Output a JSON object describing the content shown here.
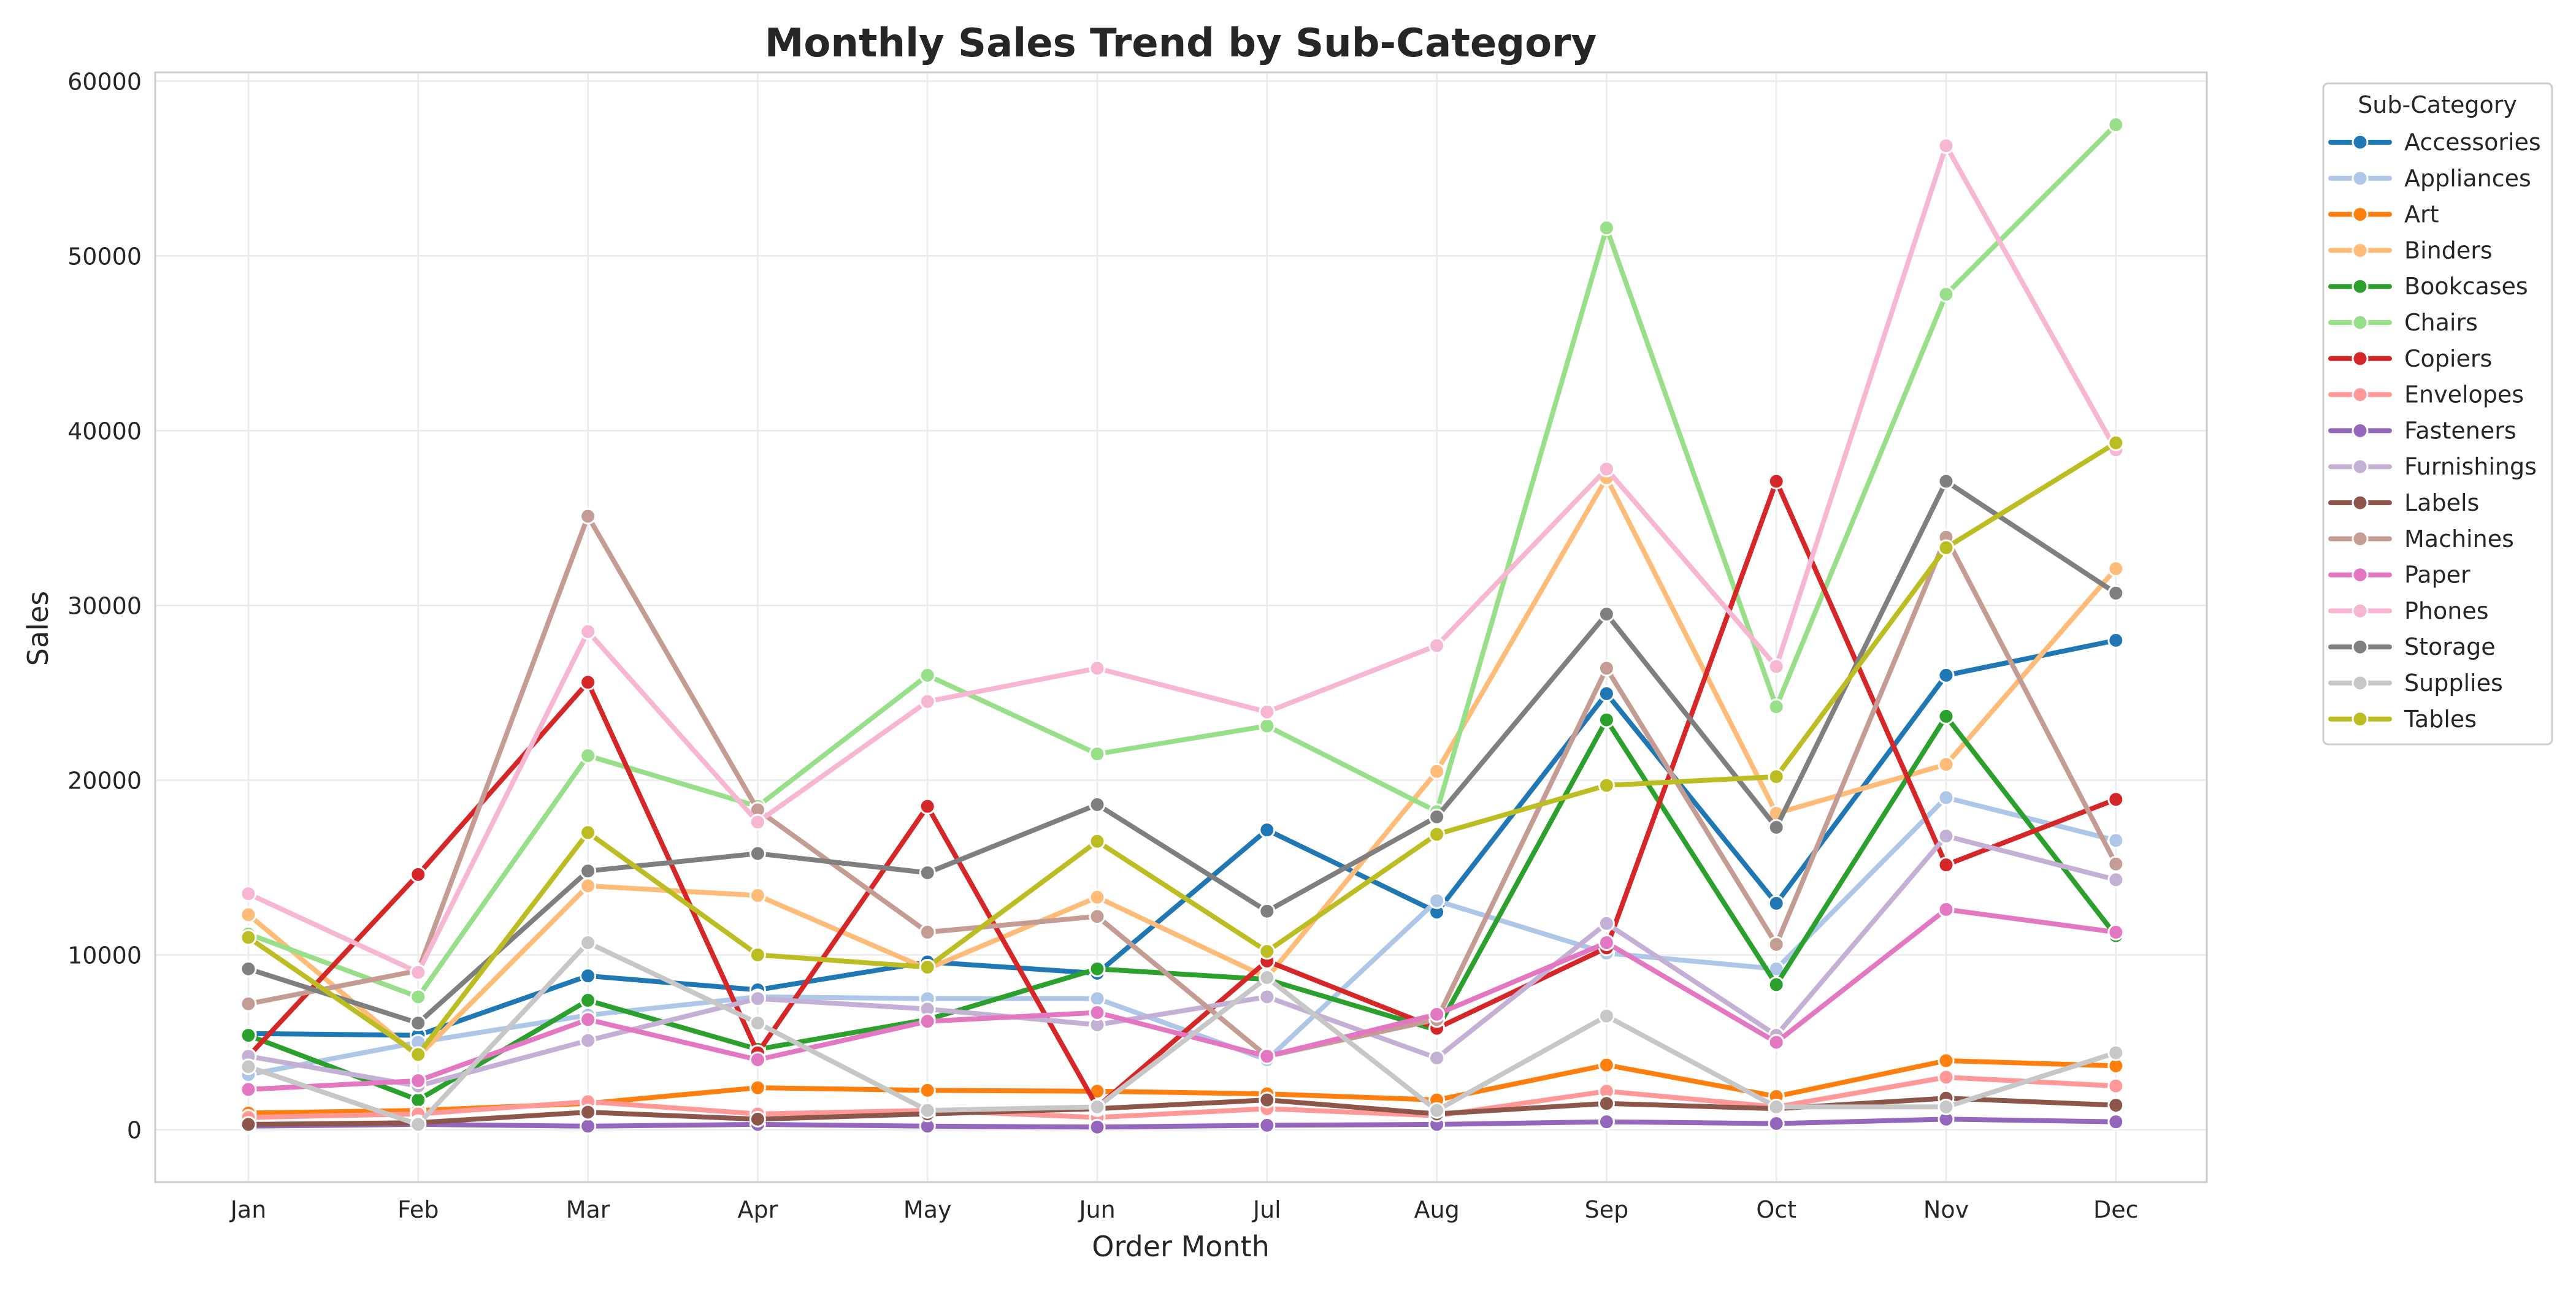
{
  "chart_data": {
    "type": "line",
    "title": "Monthly Sales Trend by Sub-Category",
    "xlabel": "Order Month",
    "ylabel": "Sales",
    "categories": [
      "Jan",
      "Feb",
      "Mar",
      "Apr",
      "May",
      "Jun",
      "Jul",
      "Aug",
      "Sep",
      "Oct",
      "Nov",
      "Dec"
    ],
    "ylim": [
      -3000,
      60500
    ],
    "yticks": [
      0,
      10000,
      20000,
      30000,
      40000,
      50000,
      60000
    ],
    "grid": true,
    "legend": {
      "title": "Sub-Category",
      "placement": "outside-right-top"
    },
    "series": [
      {
        "name": "Accessories",
        "color": "#1f77b4",
        "values": [
          5500,
          5400,
          8800,
          8000,
          9600,
          8950,
          17150,
          12450,
          24950,
          12950,
          26000,
          28000
        ]
      },
      {
        "name": "Appliances",
        "color": "#aec7e8",
        "values": [
          3150,
          5000,
          6550,
          7600,
          7500,
          7500,
          4000,
          13100,
          10100,
          9200,
          19000,
          16550
        ]
      },
      {
        "name": "Art",
        "color": "#ff7f0e",
        "values": [
          950,
          1100,
          1500,
          2400,
          2250,
          2200,
          2050,
          1700,
          3700,
          1900,
          3950,
          3650
        ]
      },
      {
        "name": "Binders",
        "color": "#ffbb78",
        "values": [
          12300,
          4200,
          13950,
          13400,
          9200,
          13300,
          8700,
          20500,
          37300,
          18100,
          20900,
          32100
        ]
      },
      {
        "name": "Bookcases",
        "color": "#2ca02c",
        "values": [
          5400,
          1700,
          7400,
          4600,
          6300,
          9200,
          8600,
          5700,
          23450,
          8300,
          23650,
          11100
        ]
      },
      {
        "name": "Chairs",
        "color": "#98df8a",
        "values": [
          11200,
          7600,
          21400,
          18500,
          26000,
          21500,
          23100,
          18200,
          51600,
          24200,
          47800,
          57500
        ]
      },
      {
        "name": "Copiers",
        "color": "#d62728",
        "values": [
          4200,
          14600,
          25600,
          4400,
          18500,
          1300,
          9650,
          5800,
          10400,
          37100,
          15150,
          18900
        ]
      },
      {
        "name": "Envelopes",
        "color": "#ff9896",
        "values": [
          700,
          900,
          1600,
          900,
          1100,
          700,
          1200,
          800,
          2200,
          1300,
          3000,
          2500
        ]
      },
      {
        "name": "Fasteners",
        "color": "#9467bd",
        "values": [
          200,
          300,
          200,
          300,
          200,
          150,
          250,
          300,
          450,
          350,
          600,
          450
        ]
      },
      {
        "name": "Furnishings",
        "color": "#c5b0d5",
        "values": [
          4200,
          2500,
          5100,
          7500,
          6900,
          6000,
          7600,
          4100,
          11800,
          5400,
          16800,
          14300
        ]
      },
      {
        "name": "Labels",
        "color": "#8c564b",
        "values": [
          300,
          400,
          1000,
          600,
          900,
          1200,
          1700,
          900,
          1500,
          1200,
          1800,
          1400
        ]
      },
      {
        "name": "Machines",
        "color": "#c49c94",
        "values": [
          7200,
          9100,
          35100,
          18300,
          11300,
          12200,
          4200,
          6300,
          26400,
          10600,
          33900,
          15200
        ]
      },
      {
        "name": "Paper",
        "color": "#e377c2",
        "values": [
          2300,
          2800,
          6300,
          4000,
          6200,
          6700,
          4200,
          6600,
          10700,
          5000,
          12600,
          11300
        ]
      },
      {
        "name": "Phones",
        "color": "#f7b6d2",
        "values": [
          13500,
          9000,
          28500,
          17600,
          24500,
          26400,
          23900,
          27700,
          37800,
          26500,
          56300,
          38900
        ]
      },
      {
        "name": "Storage",
        "color": "#7f7f7f",
        "values": [
          9200,
          6100,
          14800,
          15800,
          14700,
          18600,
          12500,
          17900,
          29500,
          17300,
          37100,
          30700
        ]
      },
      {
        "name": "Supplies",
        "color": "#c7c7c7",
        "values": [
          3600,
          300,
          10700,
          6100,
          1100,
          1300,
          8700,
          1100,
          6500,
          1300,
          1300,
          4400
        ]
      },
      {
        "name": "Tables",
        "color": "#bcbd22",
        "values": [
          11000,
          4300,
          17000,
          10000,
          9300,
          16500,
          10200,
          16900,
          19700,
          20200,
          33300,
          39300
        ]
      }
    ]
  }
}
